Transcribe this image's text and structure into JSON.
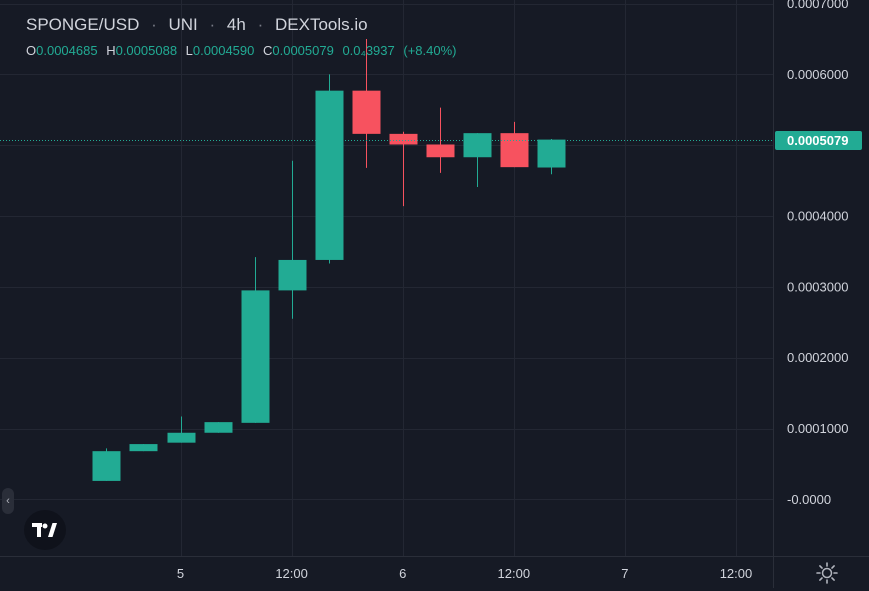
{
  "legend": {
    "title_parts": [
      "SPONGE/USD",
      "UNI",
      "4h",
      "DEXTools.io"
    ],
    "separators": [
      "·",
      "·",
      "·"
    ],
    "open_key": "O",
    "open": "0.0004685",
    "high_key": "H",
    "high": "0.0005088",
    "low_key": "L",
    "low": "0.0004590",
    "close_key": "C",
    "close": "0.0005079",
    "change": "0.0₄3937",
    "change_pct": "(+8.40%)"
  },
  "chart_data": {
    "type": "candlestick",
    "title": "SPONGE/USD · UNI · 4h · DEXTools.io",
    "x_axis": {
      "tick_labels": [
        "5",
        "12:00",
        "6",
        "12:00",
        "7",
        "12:00"
      ],
      "tick_hours": [
        0,
        12,
        24,
        36,
        48,
        60
      ]
    },
    "y_axis": {
      "tick_labels": [
        "-0.0000",
        "0.0001000",
        "0.0002000",
        "0.0003000",
        "0.0004000",
        "0.0005000",
        "0.0006000",
        "0.0007000"
      ],
      "tick_values": [
        0,
        0.0001,
        0.0002,
        0.0003,
        0.0004,
        0.0005,
        0.0006,
        0.0007
      ],
      "range": [
        -8e-05,
        0.000705
      ]
    },
    "last_price_label": "0.0005079",
    "last_price": 0.0005079,
    "x_range_hours": [
      -19.5,
      64
    ],
    "candles": [
      {
        "hour": -8,
        "open": 2.6e-05,
        "high": 7.2e-05,
        "low": 2.6e-05,
        "close": 6.8e-05
      },
      {
        "hour": -4,
        "open": 6.8e-05,
        "high": 7.8e-05,
        "low": 6.8e-05,
        "close": 7.8e-05
      },
      {
        "hour": 0,
        "open": 8e-05,
        "high": 0.000117,
        "low": 8e-05,
        "close": 9.4e-05
      },
      {
        "hour": 4,
        "open": 9.4e-05,
        "high": 0.000109,
        "low": 9.4e-05,
        "close": 0.000109
      },
      {
        "hour": 8,
        "open": 0.000108,
        "high": 0.000342,
        "low": 0.000108,
        "close": 0.000295
      },
      {
        "hour": 12,
        "open": 0.000295,
        "high": 0.000478,
        "low": 0.000255,
        "close": 0.000338
      },
      {
        "hour": 16,
        "open": 0.000338,
        "high": 0.0006,
        "low": 0.000333,
        "close": 0.000577
      },
      {
        "hour": 20,
        "open": 0.000577,
        "high": 0.00065,
        "low": 0.000468,
        "close": 0.000516
      },
      {
        "hour": 24,
        "open": 0.000516,
        "high": 0.000519,
        "low": 0.000414,
        "close": 0.000501
      },
      {
        "hour": 28,
        "open": 0.000501,
        "high": 0.000553,
        "low": 0.000461,
        "close": 0.000483
      },
      {
        "hour": 32,
        "open": 0.000483,
        "high": 0.000517,
        "low": 0.000441,
        "close": 0.000517
      },
      {
        "hour": 36,
        "open": 0.000517,
        "high": 0.000533,
        "low": 0.000469,
        "close": 0.000469
      },
      {
        "hour": 40,
        "open": 0.0004685,
        "high": 0.0005088,
        "low": 0.000459,
        "close": 0.0005079
      }
    ],
    "colors": {
      "up": "#22ab94",
      "down": "#f7525f",
      "background": "#161a25",
      "grid": "#232733",
      "axis_line": "#2a2e39",
      "text": "#d1d4dc",
      "price_line": "#22ab94"
    },
    "grid": true
  },
  "icons": {
    "logo": "tradingview-logo-icon",
    "collapse": "chevron-left-icon",
    "settings": "gear-icon",
    "collapse_glyph": "‹"
  }
}
